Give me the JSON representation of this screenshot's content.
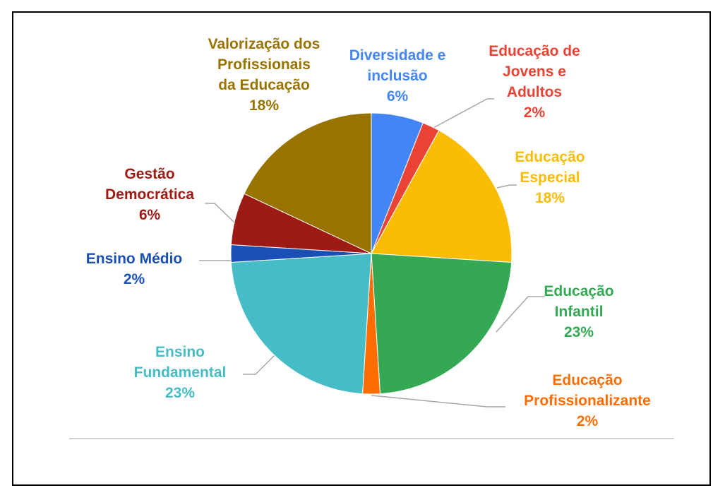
{
  "chart_data": {
    "type": "pie",
    "categories": [
      "Diversidade e inclusão",
      "Educação de Jovens e Adultos",
      "Educação Especial",
      "Educação Infantil",
      "Educação Profissionalizante",
      "Ensino Fundamental",
      "Ensino Médio",
      "Gestão Democrática",
      "Valorização dos Profissionais da Educação"
    ],
    "values": [
      6,
      2,
      18,
      23,
      2,
      23,
      2,
      6,
      18
    ],
    "value_labels": [
      "6%",
      "2%",
      "18%",
      "23%",
      "2%",
      "23%",
      "2%",
      "6%",
      "18%"
    ],
    "colors": [
      "#4285f4",
      "#ea4335",
      "#fbbc04",
      "#34a853",
      "#ff6d01",
      "#46bdc6",
      "#1a4fb5",
      "#9e1a14",
      "#997300"
    ]
  }
}
